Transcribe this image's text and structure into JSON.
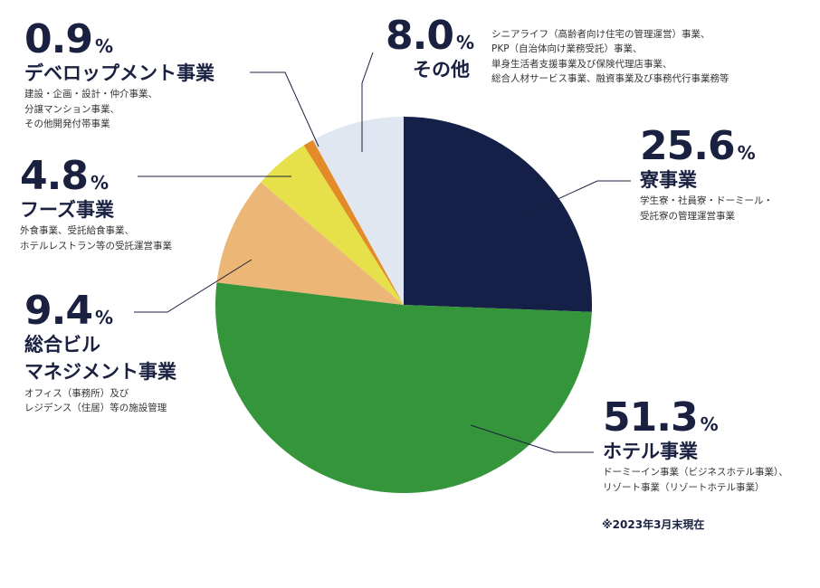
{
  "chart_data": {
    "type": "pie",
    "start_angle_deg": 0,
    "direction": "clockwise",
    "unit": "%",
    "slices": [
      {
        "key": "ryo",
        "percent": "25.6",
        "value": 25.6,
        "name": "寮事業",
        "color": "#152048",
        "desc": [
          "学生寮・社員寮・ドーミール・",
          "受託寮の管理運営事業"
        ]
      },
      {
        "key": "hotel",
        "percent": "51.3",
        "value": 51.3,
        "name": "ホテル事業",
        "color": "#35953a",
        "desc": [
          "ドーミーイン事業（ビジネスホテル事業）、",
          "リゾート事業（リゾートホテル事業）"
        ]
      },
      {
        "key": "building",
        "percent": "9.4",
        "value": 9.4,
        "name": "総合ビル",
        "name2": "マネジメント事業",
        "color": "#ecb677",
        "desc": [
          "オフィス（事務所）及び",
          "レジデンス（住居）等の施設管理"
        ]
      },
      {
        "key": "foods",
        "percent": "4.8",
        "value": 4.8,
        "name": "フーズ事業",
        "color": "#e6e14a",
        "desc": [
          "外食事業、受託給食事業、",
          "ホテルレストラン等の受託運営事業"
        ]
      },
      {
        "key": "dev",
        "percent": "0.9",
        "value": 0.9,
        "name": "デベロップメント事業",
        "color": "#e38b28",
        "desc": [
          "建設・企画・設計・仲介事業、",
          "分譲マンション事業、",
          "その他開発付帯事業"
        ]
      },
      {
        "key": "other",
        "percent": "8.0",
        "value": 8.0,
        "name": "その他",
        "color": "#e0e7f0",
        "desc": [
          "シニアライフ（高齢者向け住宅の管理運営）事業、",
          "PKP（自治体向け業務受託）事業、",
          "単身生活者支援事業及び保険代理店事業、",
          "総合人材サービス事業、融資事業及び事務代行事業務等"
        ]
      }
    ]
  },
  "note": "※2023年3月末現在"
}
